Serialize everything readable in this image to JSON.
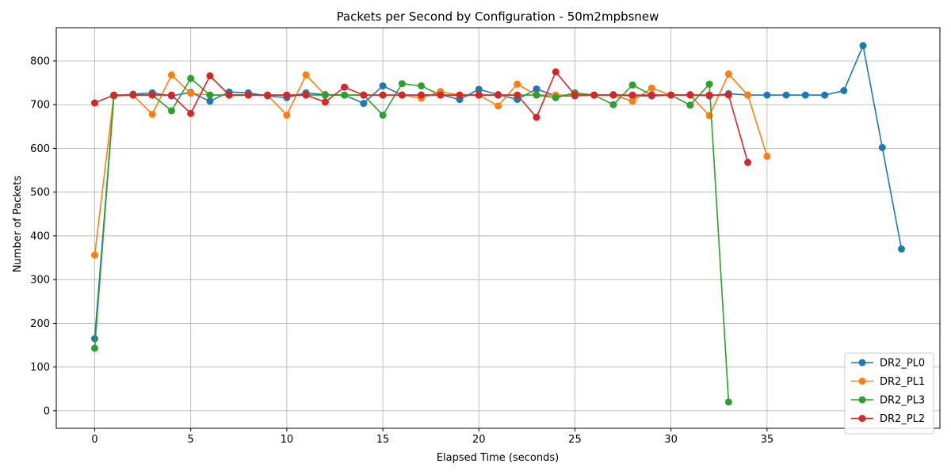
{
  "chart_data": {
    "type": "line",
    "title": "Packets per Second by Configuration - 50m2mpbsnew",
    "xlabel": "Elapsed Time (seconds)",
    "ylabel": "Number of Packets",
    "xlim": [
      -2,
      44
    ],
    "ylim": [
      -40,
      876
    ],
    "xticks": [
      0,
      5,
      10,
      15,
      20,
      25,
      30,
      35
    ],
    "yticks": [
      0,
      100,
      200,
      300,
      400,
      500,
      600,
      700,
      800
    ],
    "grid": true,
    "legend_position": "lower-right",
    "series": [
      {
        "name": "DR2_PL0",
        "color": "#1f77b4",
        "x": [
          0,
          1,
          2,
          3,
          4,
          5,
          6,
          7,
          8,
          9,
          10,
          11,
          12,
          13,
          14,
          15,
          16,
          17,
          18,
          19,
          20,
          21,
          22,
          23,
          24,
          25,
          26,
          27,
          28,
          29,
          30,
          31,
          32,
          33,
          34,
          35,
          36,
          37,
          38,
          39,
          40,
          41,
          42
        ],
        "y": [
          165,
          720,
          724,
          727,
          720,
          728,
          708,
          729,
          727,
          720,
          716,
          727,
          723,
          722,
          703,
          743,
          722,
          722,
          723,
          712,
          735,
          723,
          712,
          736,
          720,
          720,
          722,
          723,
          720,
          720,
          722,
          723,
          720,
          725,
          722,
          722,
          722,
          722,
          722,
          732,
          835,
          602,
          370
        ]
      },
      {
        "name": "DR2_PL1",
        "color": "#ff7f0e",
        "x": [
          0,
          1,
          2,
          3,
          4,
          5,
          6,
          7,
          8,
          9,
          10,
          11,
          12,
          13,
          14,
          15,
          16,
          17,
          18,
          19,
          20,
          21,
          22,
          23,
          24,
          25,
          26,
          27,
          28,
          29,
          30,
          31,
          32,
          33,
          34,
          35
        ],
        "y": [
          356,
          722,
          722,
          678,
          768,
          726,
          722,
          722,
          722,
          722,
          676,
          768,
          722,
          722,
          722,
          722,
          722,
          715,
          730,
          722,
          722,
          697,
          747,
          722,
          722,
          722,
          722,
          722,
          708,
          738,
          722,
          722,
          675,
          770,
          722,
          582
        ]
      },
      {
        "name": "DR2_PL3",
        "color": "#2ca02c",
        "x": [
          0,
          1,
          2,
          3,
          4,
          5,
          6,
          7,
          8,
          9,
          10,
          11,
          12,
          13,
          14,
          15,
          16,
          17,
          18,
          19,
          20,
          21,
          22,
          23,
          24,
          25,
          26,
          27,
          28,
          29,
          30,
          31,
          32,
          33
        ],
        "y": [
          143,
          720,
          722,
          722,
          686,
          760,
          722,
          722,
          722,
          722,
          722,
          722,
          722,
          722,
          722,
          676,
          748,
          743,
          722,
          722,
          722,
          722,
          722,
          722,
          716,
          727,
          722,
          700,
          745,
          722,
          722,
          699,
          747,
          20
        ]
      },
      {
        "name": "DR2_PL2",
        "color": "#d62728",
        "x": [
          0,
          1,
          2,
          3,
          4,
          5,
          6,
          7,
          8,
          9,
          10,
          11,
          12,
          13,
          14,
          15,
          16,
          17,
          18,
          19,
          20,
          21,
          22,
          23,
          24,
          25,
          26,
          27,
          28,
          29,
          30,
          31,
          32,
          33,
          34
        ],
        "y": [
          704,
          722,
          722,
          722,
          722,
          680,
          766,
          722,
          722,
          722,
          722,
          722,
          706,
          740,
          722,
          722,
          722,
          722,
          722,
          722,
          722,
          722,
          722,
          671,
          775,
          722,
          722,
          722,
          722,
          722,
          722,
          722,
          722,
          722,
          568
        ]
      }
    ]
  }
}
